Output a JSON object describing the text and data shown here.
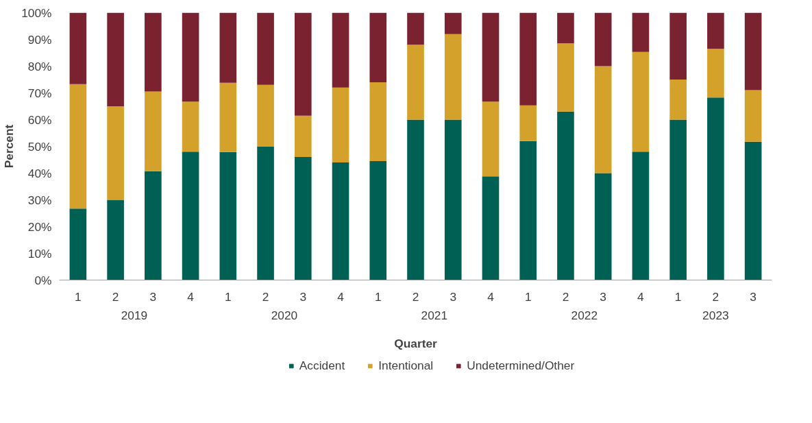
{
  "chart_data": {
    "type": "bar",
    "stacked": true,
    "xlabel": "Quarter",
    "ylabel": "Percent",
    "categories": [
      "1",
      "2",
      "3",
      "4",
      "1",
      "2",
      "3",
      "4",
      "1",
      "2",
      "3",
      "4",
      "1",
      "2",
      "3",
      "4",
      "1",
      "2",
      "3"
    ],
    "annotations": [
      "2019",
      "2020",
      "2021",
      "2022",
      "2023"
    ],
    "series": [
      {
        "name": "Accident",
        "color": "#006054",
        "values": [
          26.7,
          30,
          40.7,
          48,
          47.9,
          50,
          46,
          44,
          44.5,
          60,
          60,
          38.8,
          52,
          63,
          40,
          48,
          60,
          68.3,
          51.7
        ]
      },
      {
        "name": "Intentional",
        "color": "#d4a12a",
        "values": [
          46.6,
          35,
          29.8,
          18.7,
          25.9,
          23,
          15.5,
          28,
          29.5,
          28,
          32,
          27.9,
          13.3,
          25.5,
          40,
          37.3,
          15,
          18.2,
          19.3
        ]
      },
      {
        "name": "Undetermined/Other",
        "color": "#7b2230",
        "values": [
          26.7,
          35,
          29.5,
          33.3,
          26.2,
          27,
          38.5,
          28,
          26,
          12,
          8,
          33.3,
          34.7,
          11.5,
          20,
          14.7,
          25,
          13.5,
          29
        ]
      }
    ],
    "ylim": [
      0,
      100
    ],
    "yticks": [
      {
        "value": 0,
        "label": "0%"
      },
      {
        "value": 10,
        "label": "10%"
      },
      {
        "value": 20,
        "label": "20%"
      },
      {
        "value": 30,
        "label": "30%"
      },
      {
        "value": 40,
        "label": "40%"
      },
      {
        "value": 50,
        "label": "50%"
      },
      {
        "value": 60,
        "label": "60%"
      },
      {
        "value": 70,
        "label": "70%"
      },
      {
        "value": 80,
        "label": "80%"
      },
      {
        "value": 90,
        "label": "90%"
      },
      {
        "value": 100,
        "label": "100%"
      }
    ],
    "grid": false,
    "legend": "bottom"
  }
}
